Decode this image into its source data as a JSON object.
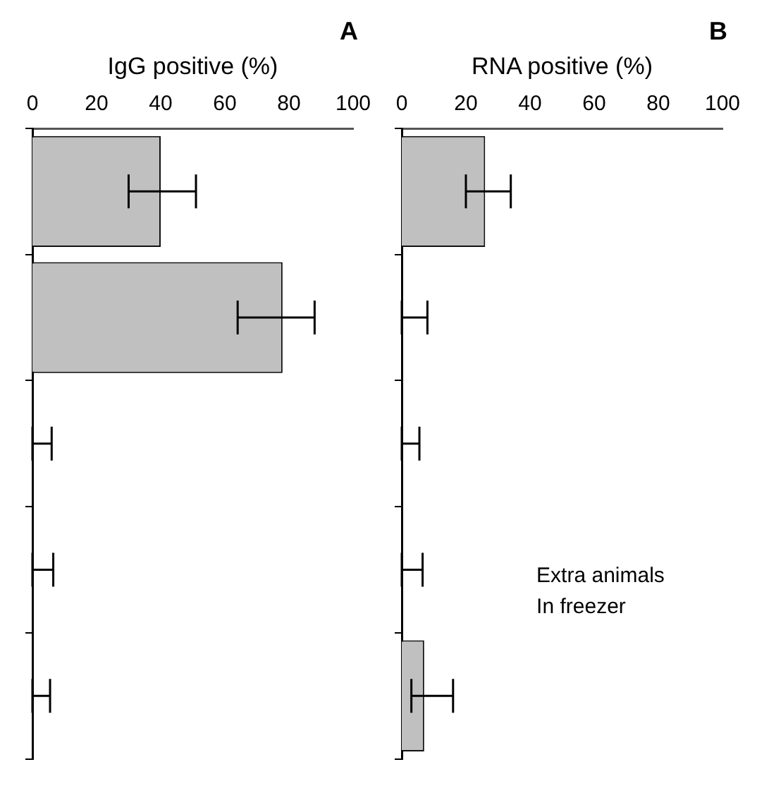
{
  "chart_data": [
    {
      "type": "bar",
      "orientation": "horizontal",
      "title": "A",
      "xlabel": "IgG positive (%)",
      "categories": [
        null,
        null,
        null,
        null,
        null
      ],
      "values": [
        40,
        78,
        0,
        0,
        0
      ],
      "color": "#c0c0c0",
      "errors": [
        [
          30,
          51
        ],
        [
          64,
          88
        ],
        [
          0,
          6
        ],
        [
          0,
          6.5
        ],
        [
          0,
          5.5
        ]
      ],
      "xlim": [
        0,
        100
      ],
      "xticks": [
        0,
        20,
        40,
        60,
        80,
        100
      ],
      "grid": false,
      "legend": false
    },
    {
      "type": "bar",
      "orientation": "horizontal",
      "title": "B",
      "xlabel": "RNA positive (%)",
      "categories": [
        null,
        null,
        null,
        null,
        null
      ],
      "values": [
        26,
        0,
        0,
        0,
        7
      ],
      "color": "#c0c0c0",
      "errors": [
        [
          20,
          34
        ],
        [
          0,
          8
        ],
        [
          0,
          5.5
        ],
        [
          0,
          6.5
        ],
        [
          3,
          16
        ]
      ],
      "xlim": [
        0,
        100
      ],
      "xticks": [
        0,
        20,
        40,
        60,
        80,
        100
      ],
      "grid": false,
      "legend": false,
      "annotations": [
        "Extra animals\nIn freezer"
      ]
    }
  ]
}
